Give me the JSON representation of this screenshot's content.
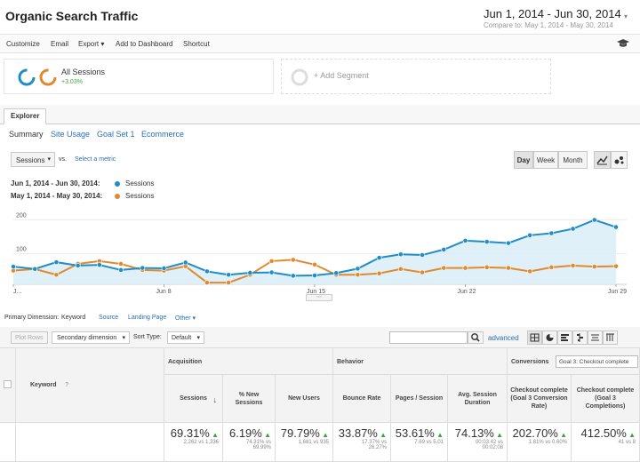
{
  "header": {
    "title": "Organic Search Traffic",
    "date_range": "Jun 1, 2014 - Jun 30, 2014",
    "compare_label": "Compare to:",
    "compare_range": "May 1, 2014 - May 30, 2014"
  },
  "toolbar": {
    "customize": "Customize",
    "email": "Email",
    "export": "Export",
    "add_dashboard": "Add to Dashboard",
    "shortcut": "Shortcut"
  },
  "segments": {
    "all_sessions": "All Sessions",
    "all_sessions_change": "+3.03%",
    "add_segment": "+ Add Segment"
  },
  "tabs": {
    "explorer": "Explorer",
    "summary": "Summary",
    "site_usage": "Site Usage",
    "goal_set": "Goal Set 1",
    "ecommerce": "Ecommerce"
  },
  "chart_controls": {
    "metric": "Sessions",
    "vs": "vs.",
    "select_metric": "Select a metric",
    "day": "Day",
    "week": "Week",
    "month": "Month"
  },
  "legend": [
    {
      "range": "Jun 1, 2014 - Jun 30, 2014:",
      "name": "Sessions",
      "color": "#1f8dc6"
    },
    {
      "range": "May 1, 2014 - May 30, 2014:",
      "name": "Sessions",
      "color": "#e08a2d"
    }
  ],
  "chart_data": {
    "type": "line",
    "y_ticks": [
      "200",
      "100"
    ],
    "x_ticks": [
      "J...",
      "Jun 8",
      "Jun 15",
      "Jun 22",
      "Jun 29"
    ],
    "ylim": [
      0,
      240
    ],
    "area_fill": true,
    "grid": true,
    "series": [
      {
        "name": "Sessions",
        "color": "#1f8dc6",
        "values": [
          52,
          45,
          65,
          55,
          57,
          42,
          48,
          47,
          64,
          38,
          28,
          34,
          35,
          25,
          26,
          33,
          46,
          78,
          88,
          86,
          102,
          128,
          125,
          121,
          144,
          150,
          163,
          189,
          168
        ]
      },
      {
        "name": "Sessions",
        "color": "#e08a2d",
        "values": [
          40,
          45,
          28,
          60,
          68,
          60,
          42,
          40,
          53,
          5,
          5,
          28,
          68,
          72,
          58,
          28,
          28,
          32,
          45,
          35,
          48,
          48,
          50,
          48,
          38,
          50,
          55,
          52,
          53
        ]
      }
    ]
  },
  "primary_dimension": {
    "label": "Primary Dimension:",
    "keyword": "Keyword",
    "source": "Source",
    "landing_page": "Landing Page",
    "other": "Other"
  },
  "table_controls": {
    "plot_rows": "Plot Rows",
    "secondary_dimension": "Secondary dimension",
    "sort_type_label": "Sort Type:",
    "sort_type": "Default",
    "advanced": "advanced"
  },
  "table": {
    "keyword_header": "Keyword",
    "acquisition": "Acquisition",
    "behavior": "Behavior",
    "conversions": "Conversions",
    "goal_select": "Goal 3: Checkout complete",
    "columns": [
      {
        "label": "Sessions",
        "value": "69.31%",
        "sub1": "2,262 vs 1,336",
        "sub2": ""
      },
      {
        "label": "% New Sessions",
        "value": "6.19%",
        "sub1": "74.31% vs",
        "sub2": "69.99%"
      },
      {
        "label": "New Users",
        "value": "79.79%",
        "sub1": "1,681 vs 935",
        "sub2": ""
      },
      {
        "label": "Bounce Rate",
        "value": "33.87%",
        "sub1": "17.37% vs",
        "sub2": "26.27%"
      },
      {
        "label": "Pages / Session",
        "value": "53.61%",
        "sub1": "7.69 vs 5.01",
        "sub2": ""
      },
      {
        "label": "Avg. Session Duration",
        "value": "74.13%",
        "sub1": "00:03:42 vs",
        "sub2": "00:02:08"
      },
      {
        "label": "Checkout complete (Goal 3 Conversion Rate)",
        "value": "202.70%",
        "sub1": "1.81% vs 0.60%",
        "sub2": ""
      },
      {
        "label": "Checkout complete (Goal 3 Completions)",
        "value": "412.50%",
        "sub1": "41 vs 8",
        "sub2": ""
      }
    ]
  }
}
